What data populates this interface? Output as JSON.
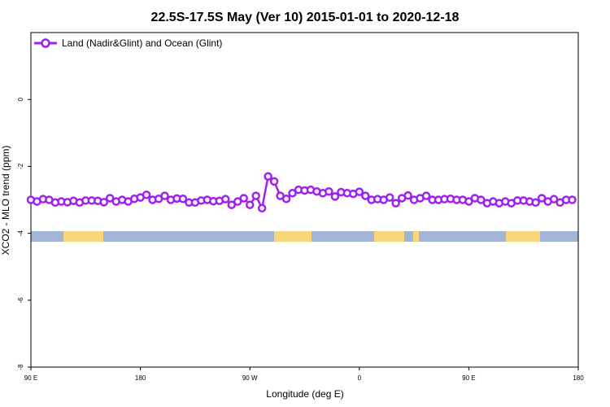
{
  "chart_data": {
    "type": "line",
    "title": "22.5S-17.5S May (Ver 10)   2015-01-01 to 2020-12-18",
    "x_label": "Longitude (deg E)",
    "y_label": "XCO2 - MLO trend (ppm)",
    "xlim": [
      90,
      540
    ],
    "ylim": [
      -8,
      2
    ],
    "xticks": [
      {
        "value": 90,
        "label": "90 E"
      },
      180,
      {
        "value": 270,
        "label": "90 W"
      },
      {
        "value": 360,
        "label": "0"
      },
      {
        "value": 450,
        "label": "90 E"
      },
      {
        "value": 540,
        "label": "180"
      }
    ],
    "yticks": [
      0,
      -2,
      -4,
      -6,
      -8
    ],
    "legend_position": "top-left",
    "x": [
      90,
      95,
      100,
      105,
      110,
      115,
      120,
      125,
      130,
      135,
      140,
      145,
      150,
      155,
      160,
      165,
      170,
      175,
      180,
      185,
      190,
      195,
      200,
      205,
      210,
      215,
      220,
      225,
      230,
      235,
      240,
      245,
      250,
      255,
      260,
      265,
      270,
      275,
      280,
      285,
      290,
      295,
      300,
      305,
      310,
      315,
      320,
      325,
      330,
      335,
      340,
      345,
      350,
      355,
      360,
      365,
      370,
      375,
      380,
      385,
      390,
      395,
      400,
      405,
      410,
      415,
      420,
      425,
      430,
      435,
      440,
      445,
      450,
      455,
      460,
      465,
      470,
      475,
      480,
      485,
      490,
      495,
      500,
      505,
      510,
      515,
      520,
      525,
      530,
      535
    ],
    "series": [
      {
        "name": "Land (Nadir&Glint) and Ocean (Glint)",
        "color": "#a020f0",
        "values": [
          -3.0,
          -3.05,
          -2.98,
          -3.0,
          -3.08,
          -3.05,
          -3.07,
          -3.03,
          -3.08,
          -3.02,
          -3.02,
          -3.03,
          -3.07,
          -2.95,
          -3.05,
          -3.0,
          -3.05,
          -2.97,
          -2.93,
          -2.85,
          -3.0,
          -2.97,
          -2.88,
          -3.0,
          -2.96,
          -2.97,
          -3.08,
          -3.08,
          -3.02,
          -3.0,
          -3.04,
          -3.03,
          -2.98,
          -3.15,
          -3.05,
          -2.95,
          -3.15,
          -2.88,
          -3.25,
          -2.3,
          -2.45,
          -2.88,
          -2.97,
          -2.8,
          -2.7,
          -2.72,
          -2.7,
          -2.75,
          -2.8,
          -2.75,
          -2.9,
          -2.77,
          -2.8,
          -2.82,
          -2.76,
          -2.88,
          -3.0,
          -2.98,
          -3.0,
          -2.93,
          -3.1,
          -2.95,
          -2.87,
          -3.0,
          -2.95,
          -2.88,
          -3.0,
          -3.0,
          -2.98,
          -2.97,
          -3.0,
          -3.0,
          -3.05,
          -2.95,
          -3.0,
          -3.1,
          -3.05,
          -3.1,
          -3.05,
          -3.1,
          -3.02,
          -3.02,
          -3.05,
          -3.08,
          -2.95,
          -3.05,
          -2.98,
          -3.08,
          -3.0,
          -3.0
        ]
      }
    ]
  }
}
